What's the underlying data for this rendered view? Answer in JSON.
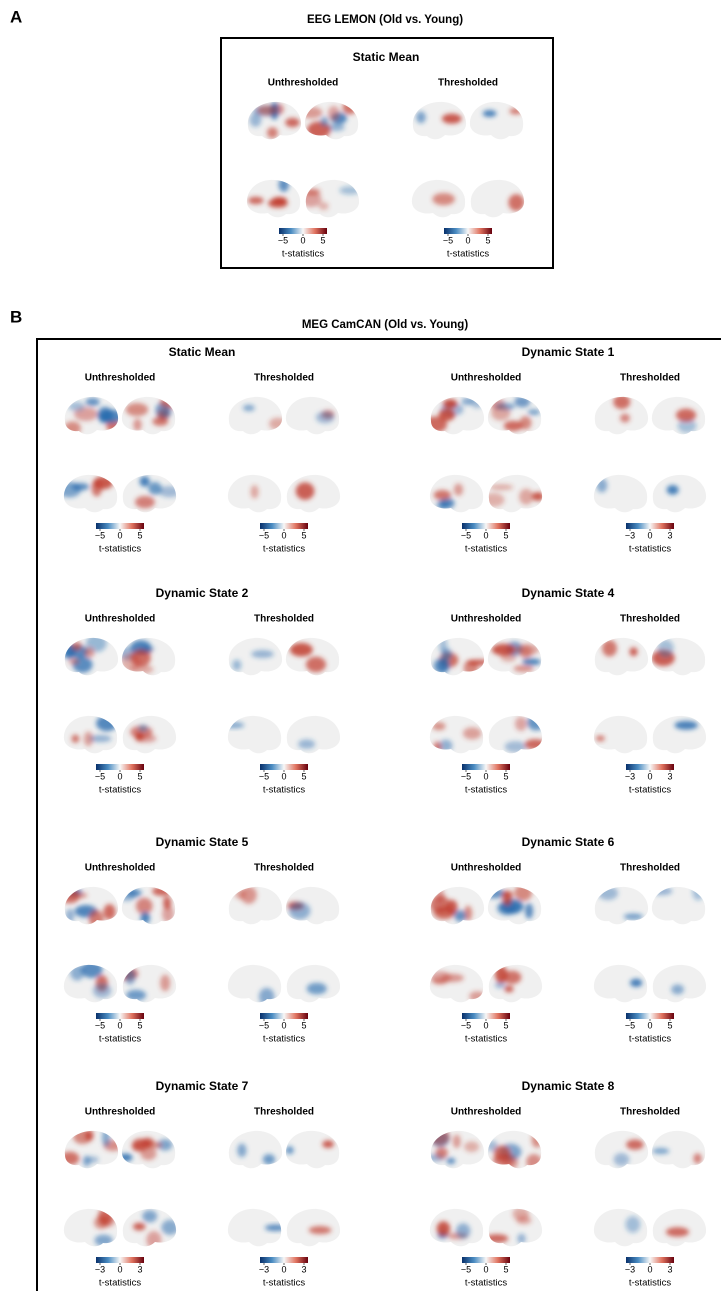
{
  "panels": [
    {
      "label": "A",
      "title": "EEG LEMON (Old vs. Young)",
      "blocks": [
        {
          "title": "Static Mean",
          "maps": [
            {
              "label": "Unthresholded",
              "colorbar": {
                "ticks": [
                  "−5",
                  "0",
                  "5"
                ],
                "label": "t-statistics"
              }
            },
            {
              "label": "Thresholded",
              "colorbar": {
                "ticks": [
                  "−5",
                  "0",
                  "5"
                ],
                "label": "t-statistics"
              }
            }
          ]
        }
      ]
    },
    {
      "label": "B",
      "title": "MEG CamCAN (Old vs. Young)",
      "blocks": [
        {
          "title": "Static Mean",
          "maps": [
            {
              "label": "Unthresholded",
              "colorbar": {
                "ticks": [
                  "−5",
                  "0",
                  "5"
                ],
                "label": "t-statistics"
              }
            },
            {
              "label": "Thresholded",
              "colorbar": {
                "ticks": [
                  "−5",
                  "0",
                  "5"
                ],
                "label": "t-statistics"
              }
            }
          ]
        },
        {
          "title": "Dynamic State 1",
          "maps": [
            {
              "label": "Unthresholded",
              "colorbar": {
                "ticks": [
                  "−5",
                  "0",
                  "5"
                ],
                "label": "t-statistics"
              }
            },
            {
              "label": "Thresholded",
              "colorbar": {
                "ticks": [
                  "−3",
                  "0",
                  "3"
                ],
                "label": "t-statistics"
              }
            }
          ]
        },
        {
          "title": "Dynamic State 2",
          "maps": [
            {
              "label": "Unthresholded",
              "colorbar": {
                "ticks": [
                  "−5",
                  "0",
                  "5"
                ],
                "label": "t-statistics"
              }
            },
            {
              "label": "Thresholded",
              "colorbar": {
                "ticks": [
                  "−5",
                  "0",
                  "5"
                ],
                "label": "t-statistics"
              }
            }
          ]
        },
        {
          "title": "Dynamic State 4",
          "maps": [
            {
              "label": "Unthresholded",
              "colorbar": {
                "ticks": [
                  "−5",
                  "0",
                  "5"
                ],
                "label": "t-statistics"
              }
            },
            {
              "label": "Thresholded",
              "colorbar": {
                "ticks": [
                  "−3",
                  "0",
                  "3"
                ],
                "label": "t-statistics"
              }
            }
          ]
        },
        {
          "title": "Dynamic State 5",
          "maps": [
            {
              "label": "Unthresholded",
              "colorbar": {
                "ticks": [
                  "−5",
                  "0",
                  "5"
                ],
                "label": "t-statistics"
              }
            },
            {
              "label": "Thresholded",
              "colorbar": {
                "ticks": [
                  "−5",
                  "0",
                  "5"
                ],
                "label": "t-statistics"
              }
            }
          ]
        },
        {
          "title": "Dynamic State 6",
          "maps": [
            {
              "label": "Unthresholded",
              "colorbar": {
                "ticks": [
                  "−5",
                  "0",
                  "5"
                ],
                "label": "t-statistics"
              }
            },
            {
              "label": "Thresholded",
              "colorbar": {
                "ticks": [
                  "−5",
                  "0",
                  "5"
                ],
                "label": "t-statistics"
              }
            }
          ]
        },
        {
          "title": "Dynamic State 7",
          "maps": [
            {
              "label": "Unthresholded",
              "colorbar": {
                "ticks": [
                  "−3",
                  "0",
                  "3"
                ],
                "label": "t-statistics"
              }
            },
            {
              "label": "Thresholded",
              "colorbar": {
                "ticks": [
                  "−3",
                  "0",
                  "3"
                ],
                "label": "t-statistics"
              }
            }
          ]
        },
        {
          "title": "Dynamic State 8",
          "maps": [
            {
              "label": "Unthresholded",
              "colorbar": {
                "ticks": [
                  "−5",
                  "0",
                  "5"
                ],
                "label": "t-statistics"
              }
            },
            {
              "label": "Thresholded",
              "colorbar": {
                "ticks": [
                  "−3",
                  "0",
                  "3"
                ],
                "label": "t-statistics"
              }
            }
          ]
        }
      ]
    }
  ]
}
